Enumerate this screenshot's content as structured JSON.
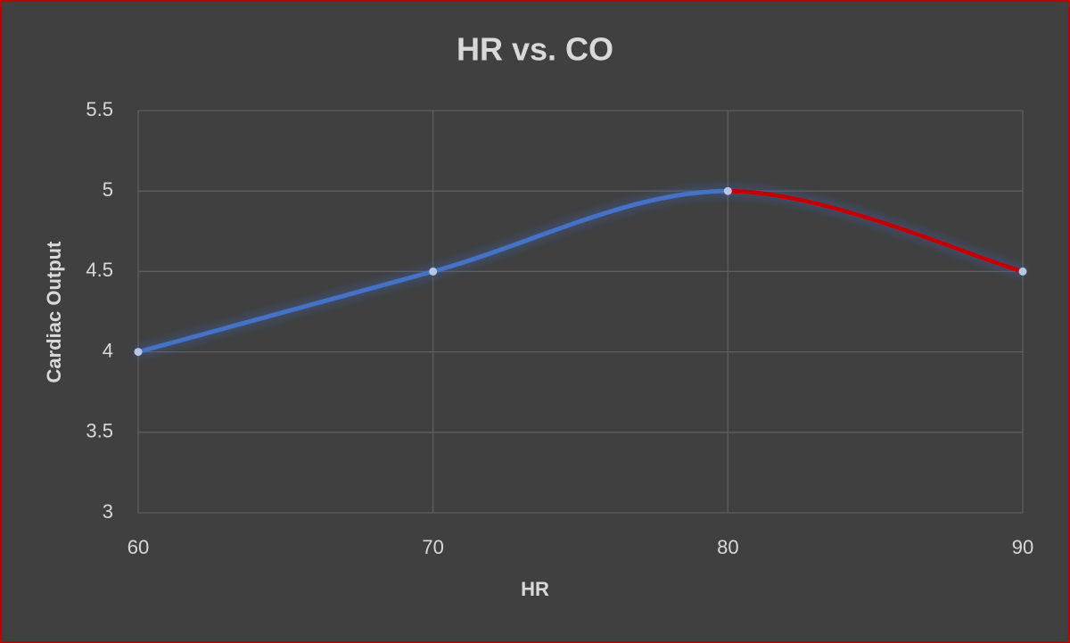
{
  "chart_data": {
    "type": "scatter",
    "title": "HR vs. CO",
    "x_label": "HR",
    "y_label": "Cardiac Output",
    "x": [
      60,
      70,
      80,
      90
    ],
    "series": [
      {
        "color": "#4472c4",
        "segment_colors": [
          "#4472c4",
          "#4472c4",
          "#c00000"
        ],
        "values": [
          4,
          4.5,
          5,
          4.5
        ]
      }
    ],
    "smooth": true,
    "xlim": [
      60,
      90
    ],
    "xticks": [
      60,
      70,
      80,
      90
    ],
    "ylim": [
      3,
      5.5
    ],
    "yticks": [
      3,
      3.5,
      4,
      4.5,
      5,
      5.5
    ],
    "grid": true
  }
}
